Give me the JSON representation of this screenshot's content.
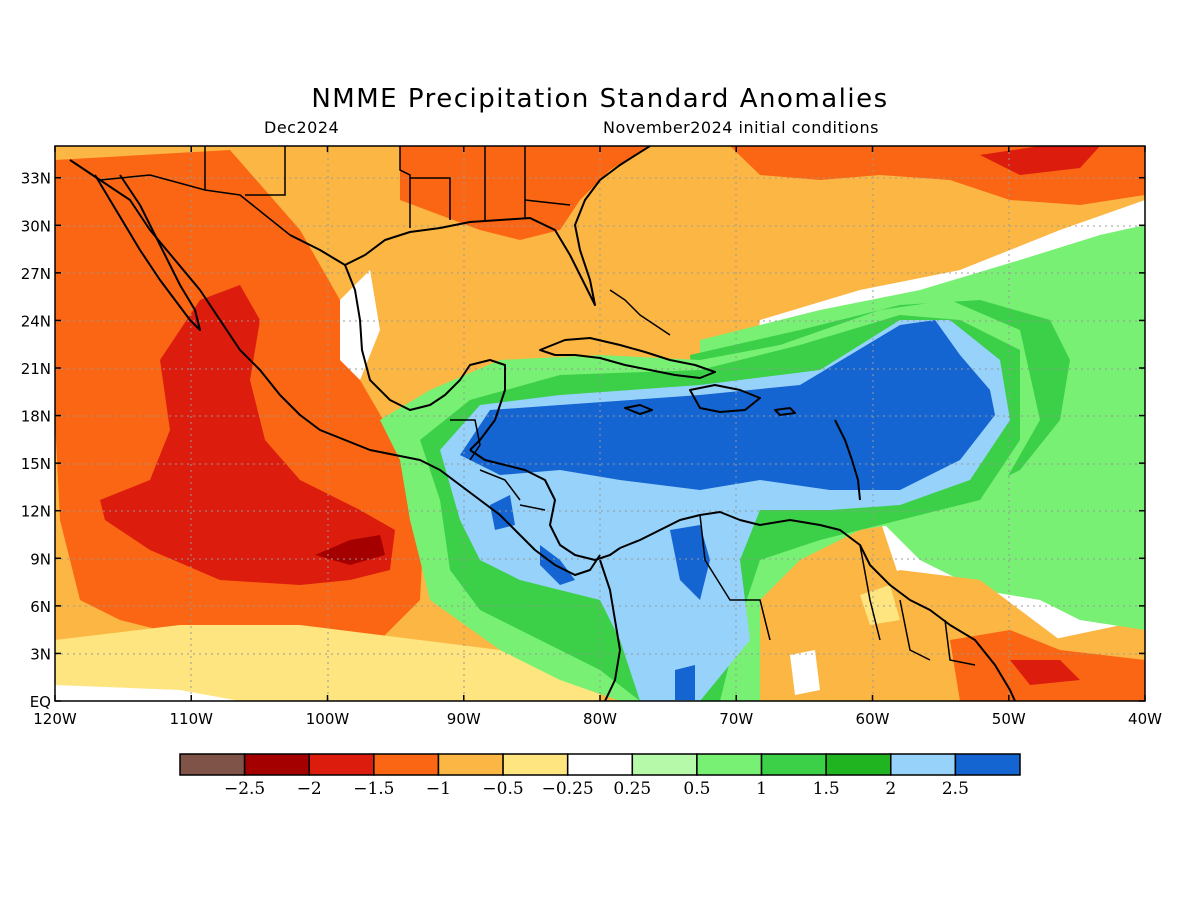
{
  "title": "NMME Precipitation Standard Anomalies",
  "subtitle_left": "Dec2024",
  "subtitle_right": "November2024 initial conditions",
  "map": {
    "lon_range": [
      -120,
      -40
    ],
    "lat_range": [
      0,
      35
    ],
    "lon_ticks": [
      "120W",
      "110W",
      "100W",
      "90W",
      "80W",
      "70W",
      "60W",
      "50W",
      "40W"
    ],
    "lat_ticks": [
      "EQ",
      "3N",
      "6N",
      "9N",
      "12N",
      "15N",
      "18N",
      "21N",
      "24N",
      "27N",
      "30N",
      "33N"
    ],
    "grid": "dotted"
  },
  "colorbar": {
    "colors": [
      "#7f5347",
      "#a50000",
      "#dc1c0c",
      "#fa6614",
      "#fcb643",
      "#fee57f",
      "#ffffff",
      "#b5f9a9",
      "#78f073",
      "#3ccf48",
      "#20b520",
      "#96d2fa",
      "#1464d2"
    ],
    "labels": [
      "−2.5",
      "−2",
      "−1.5",
      "−1",
      "−0.5",
      "−0.25",
      "0.25",
      "0.5",
      "1",
      "1.5",
      "2",
      "2.5"
    ]
  }
}
